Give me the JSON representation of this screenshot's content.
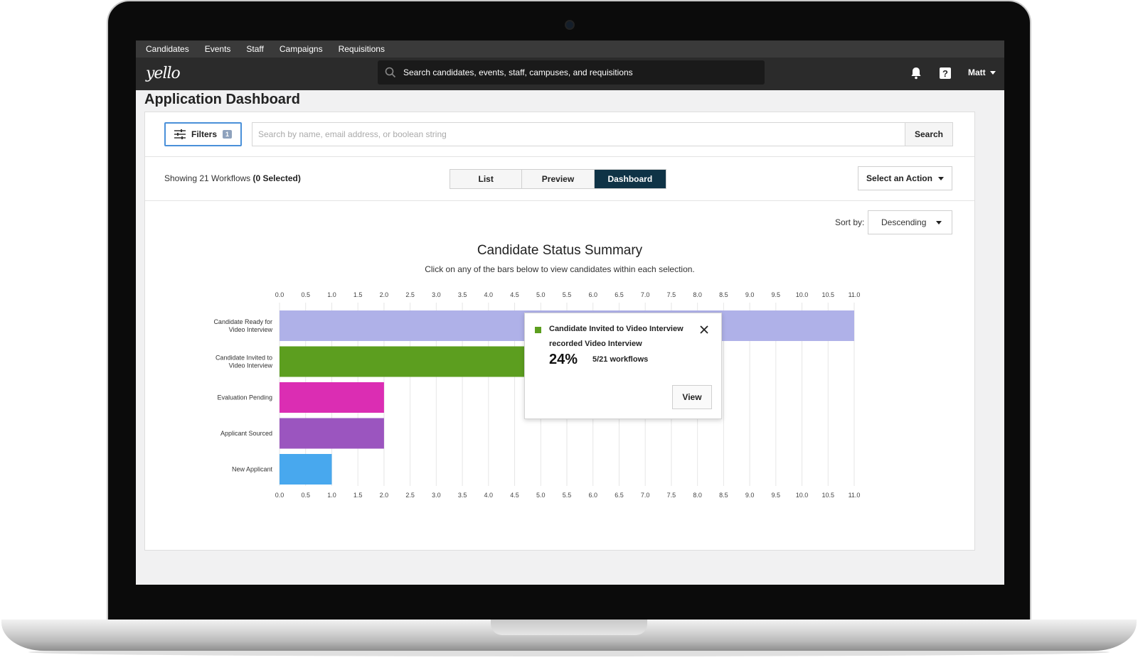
{
  "nav": {
    "items": [
      "Candidates",
      "Events",
      "Staff",
      "Campaigns",
      "Requisitions"
    ]
  },
  "header": {
    "logo": "yello",
    "search_text": "Search candidates, events, staff, campuses, and requisitions",
    "user_name": "Matt",
    "icons": [
      "bell-icon",
      "help-icon",
      "search-icon"
    ]
  },
  "page": {
    "title": "Application Dashboard",
    "filters_label": "Filters",
    "filters_count": "1",
    "search_placeholder": "Search by name, email address, or boolean string",
    "search_button": "Search",
    "showing_prefix": "Showing 21 Workflows ",
    "showing_selected": "(0 Selected)",
    "tabs": [
      "List",
      "Preview",
      "Dashboard"
    ],
    "active_tab": "Dashboard",
    "action_button": "Select an Action",
    "sort_label": "Sort by:",
    "sort_value": "Descending"
  },
  "colors": {
    "accent": "#4a90d9",
    "active_tab": "#0f3346",
    "header_bg": "#2b2b2b"
  },
  "chart_data": {
    "type": "bar",
    "orientation": "horizontal",
    "title": "Candidate Status Summary",
    "subtitle": "Click on any of the bars below to view candidates within each selection.",
    "categories": [
      "Candidate Ready for Video Interview",
      "Candidate Invited to Video Interview",
      "Evaluation Pending",
      "Applicant Sourced",
      "New Applicant"
    ],
    "values": [
      11,
      5,
      2,
      2,
      1
    ],
    "bar_colors": [
      "#afb1e8",
      "#5c9e1f",
      "#db2db3",
      "#9b55bf",
      "#48a8ee"
    ],
    "xlim": [
      0,
      11
    ],
    "ticks": [
      "0.0",
      "0.5",
      "1.0",
      "1.5",
      "2.0",
      "2.5",
      "3.0",
      "3.5",
      "4.0",
      "4.5",
      "5.0",
      "5.5",
      "6.0",
      "6.5",
      "7.0",
      "7.5",
      "8.0",
      "8.5",
      "9.0",
      "9.5",
      "10.0",
      "10.5",
      "11.0"
    ],
    "grid": true
  },
  "tooltip": {
    "title": "Candidate Invited to Video Interview",
    "subtitle": "recorded Video Interview",
    "percent": "24%",
    "count": "5/21 workflows",
    "view_button": "View",
    "color": "#5c9e1f"
  }
}
